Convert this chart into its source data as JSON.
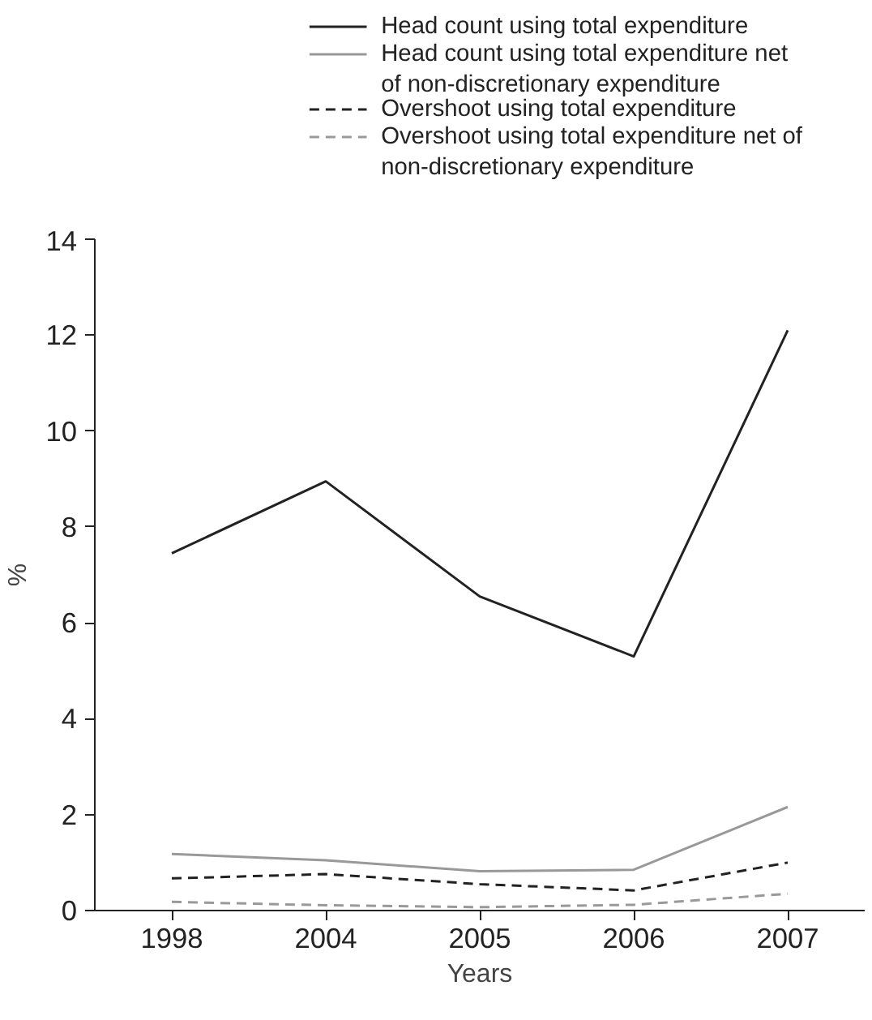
{
  "chart_data": {
    "type": "line",
    "xlabel": "Years",
    "ylabel": "%",
    "categories": [
      "1998",
      "2004",
      "2005",
      "2006",
      "2007"
    ],
    "ylim": [
      0,
      14
    ],
    "yticks": [
      0,
      2,
      4,
      6,
      8,
      10,
      12,
      14
    ],
    "grid": false,
    "legend": "top",
    "series": [
      {
        "name": "Head count using total expenditure",
        "color": "#222222",
        "line_style": "solid",
        "values": [
          7.45,
          8.95,
          6.55,
          5.3,
          12.1
        ]
      },
      {
        "name": "Head count using total expenditure net of non-discretionary expenditure",
        "color": "#999999",
        "line_style": "solid",
        "values": [
          1.18,
          1.05,
          0.82,
          0.85,
          2.16
        ]
      },
      {
        "name": "Overshoot using total expenditure",
        "color": "#222222",
        "line_style": "dashed",
        "values": [
          0.67,
          0.76,
          0.55,
          0.42,
          1.0
        ]
      },
      {
        "name": "Overshoot using total expenditure net of non-discretionary expenditure",
        "color": "#999999",
        "line_style": "dashed",
        "values": [
          0.18,
          0.11,
          0.07,
          0.12,
          0.35
        ]
      }
    ]
  }
}
